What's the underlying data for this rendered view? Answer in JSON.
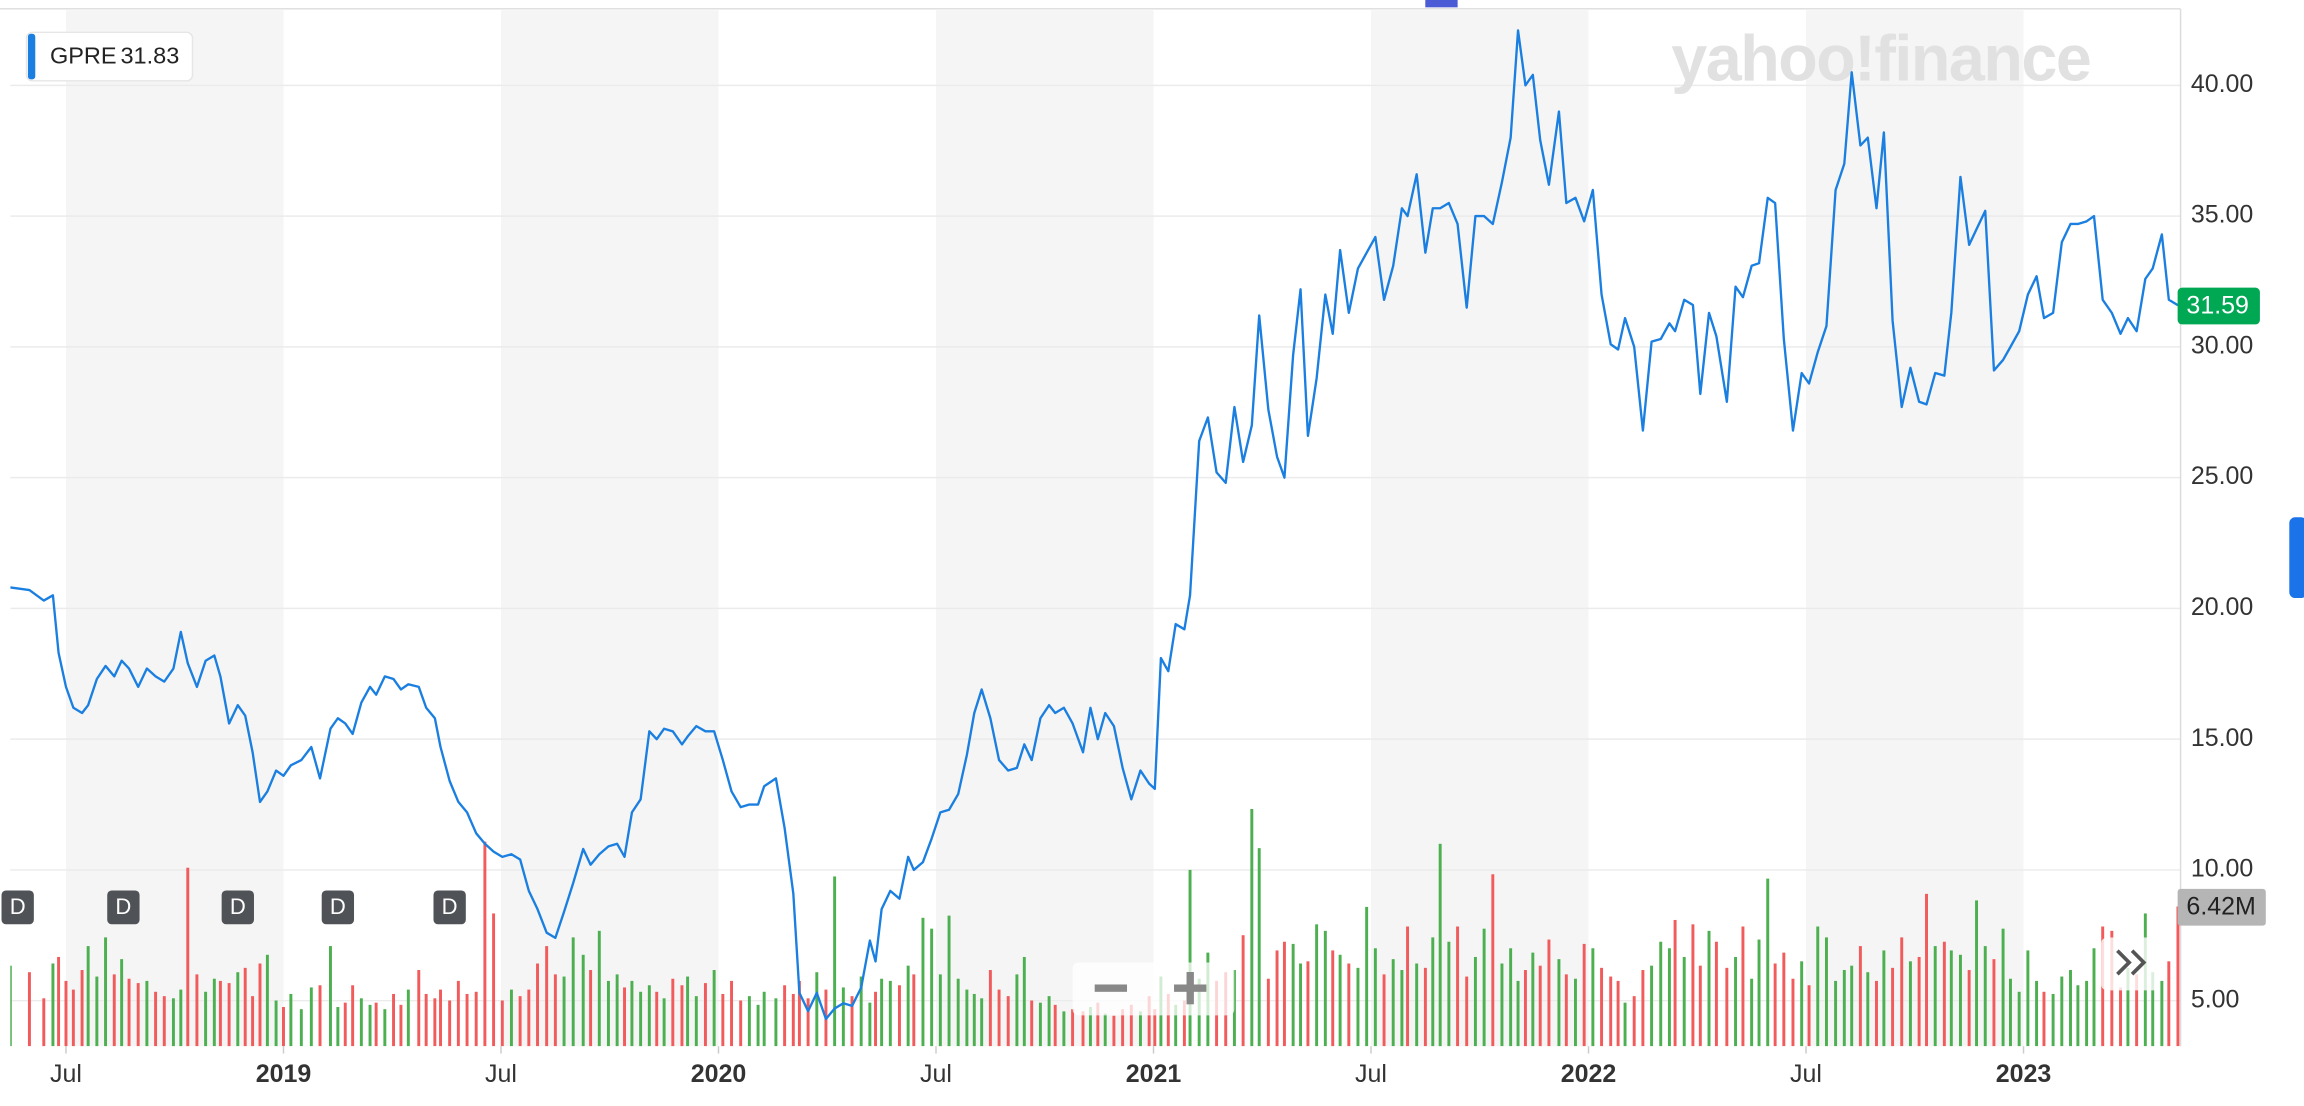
{
  "chart_data": {
    "type": "line",
    "watermark": "yahoo!finance",
    "legend_value": 31.83,
    "last_price": 31.59,
    "last_price_color": "#00a854",
    "xlim": [
      2018.372,
      2023.361
    ],
    "ylim": [
      3.26,
      42.87
    ],
    "xticks": [
      {
        "value": 2018.5,
        "label": "Jul"
      },
      2019,
      {
        "value": 2019.5,
        "label": "Jul"
      },
      2020,
      {
        "value": 2020.5,
        "label": "Jul"
      },
      2021,
      {
        "value": 2021.5,
        "label": "Jul"
      },
      2022,
      {
        "value": 2022.5,
        "label": "Jul"
      },
      2023
    ],
    "yticks": [
      {
        "value": 5,
        "label": "5.00"
      },
      {
        "value": 10,
        "label": "10.00"
      },
      {
        "value": 15,
        "label": "15.00"
      },
      {
        "value": 20,
        "label": "20.00"
      },
      {
        "value": 25,
        "label": "25.00"
      },
      {
        "value": 30,
        "label": "30.00"
      },
      {
        "value": 35,
        "label": "35.00"
      },
      {
        "value": 40,
        "label": "40.00"
      }
    ],
    "grid": true,
    "x": [
      2018.372,
      2018.416,
      2018.449,
      2018.47,
      2018.483,
      2018.5,
      2018.517,
      2018.537,
      2018.551,
      2018.571,
      2018.591,
      2018.611,
      2018.628,
      2018.645,
      2018.666,
      2018.686,
      2018.706,
      2018.726,
      2018.747,
      2018.764,
      2018.78,
      2018.801,
      2018.821,
      2018.841,
      2018.855,
      2018.875,
      2018.895,
      2018.912,
      2018.929,
      2018.946,
      2018.963,
      2018.983,
      2019.0,
      2019.017,
      2019.041,
      2019.064,
      2019.084,
      2019.108,
      2019.125,
      2019.142,
      2019.159,
      2019.179,
      2019.199,
      2019.213,
      2019.233,
      2019.253,
      2019.27,
      2019.287,
      2019.311,
      2019.328,
      2019.348,
      2019.361,
      2019.382,
      2019.402,
      2019.422,
      2019.443,
      2019.463,
      2019.483,
      2019.503,
      2019.524,
      2019.544,
      2019.564,
      2019.584,
      2019.605,
      2019.625,
      2019.645,
      2019.666,
      2019.689,
      2019.706,
      2019.726,
      2019.747,
      2019.767,
      2019.784,
      2019.801,
      2019.821,
      2019.841,
      2019.858,
      2019.875,
      2019.895,
      2019.916,
      2019.929,
      2019.949,
      2019.97,
      2019.99,
      2020.01,
      2020.03,
      2020.051,
      2020.071,
      2020.091,
      2020.105,
      2020.132,
      2020.152,
      2020.172,
      2020.186,
      2020.206,
      2020.226,
      2020.247,
      2020.267,
      2020.287,
      2020.307,
      2020.328,
      2020.348,
      2020.361,
      2020.375,
      2020.395,
      2020.416,
      2020.436,
      2020.449,
      2020.47,
      2020.49,
      2020.51,
      2020.53,
      2020.551,
      2020.571,
      2020.588,
      2020.605,
      2020.625,
      2020.645,
      2020.666,
      2020.686,
      2020.703,
      2020.72,
      2020.74,
      2020.76,
      2020.774,
      2020.794,
      2020.814,
      2020.838,
      2020.855,
      2020.872,
      2020.889,
      2020.909,
      2020.929,
      2020.949,
      2020.97,
      2020.99,
      2021.003,
      2021.017,
      2021.034,
      2021.051,
      2021.071,
      2021.084,
      2021.105,
      2021.125,
      2021.145,
      2021.166,
      2021.186,
      2021.206,
      2021.226,
      2021.243,
      2021.264,
      2021.284,
      2021.301,
      2021.321,
      2021.338,
      2021.355,
      2021.375,
      2021.395,
      2021.412,
      2021.429,
      2021.449,
      2021.47,
      2021.49,
      2021.51,
      2021.53,
      2021.551,
      2021.571,
      2021.584,
      2021.605,
      2021.625,
      2021.642,
      2021.659,
      2021.679,
      2021.699,
      2021.72,
      2021.74,
      2021.76,
      2021.78,
      2021.801,
      2021.821,
      2021.838,
      2021.855,
      2021.872,
      2021.889,
      2021.909,
      2021.932,
      2021.949,
      2021.97,
      2021.99,
      2022.01,
      2022.03,
      2022.051,
      2022.068,
      2022.084,
      2022.105,
      2022.125,
      2022.145,
      2022.166,
      2022.186,
      2022.199,
      2022.22,
      2022.24,
      2022.257,
      2022.277,
      2022.294,
      2022.318,
      2022.338,
      2022.355,
      2022.375,
      2022.392,
      2022.412,
      2022.429,
      2022.449,
      2022.47,
      2022.49,
      2022.507,
      2022.527,
      2022.547,
      2022.568,
      2022.588,
      2022.605,
      2022.625,
      2022.642,
      2022.662,
      2022.679,
      2022.699,
      2022.72,
      2022.74,
      2022.76,
      2022.777,
      2022.797,
      2022.818,
      2022.834,
      2022.855,
      2022.875,
      2022.892,
      2022.912,
      2022.932,
      2022.953,
      2022.97,
      2022.99,
      2023.01,
      2023.03,
      2023.047,
      2023.068,
      2023.088,
      2023.108,
      2023.125,
      2023.145,
      2023.162,
      2023.182,
      2023.203,
      2023.223,
      2023.24,
      2023.26,
      2023.28,
      2023.297,
      2023.318,
      2023.334,
      2023.355
    ],
    "series": [
      {
        "name": "GPRE",
        "color": "#1a7fe0",
        "values": [
          20.8,
          20.7,
          20.3,
          20.5,
          18.3,
          17.0,
          16.2,
          16.0,
          16.3,
          17.3,
          17.8,
          17.4,
          18.0,
          17.7,
          17.0,
          17.7,
          17.4,
          17.2,
          17.7,
          19.1,
          17.9,
          17.0,
          18.0,
          18.2,
          17.4,
          15.6,
          16.3,
          15.9,
          14.5,
          12.6,
          13.0,
          13.8,
          13.6,
          14.0,
          14.2,
          14.7,
          13.5,
          15.4,
          15.8,
          15.6,
          15.2,
          16.4,
          17.0,
          16.7,
          17.4,
          17.3,
          16.9,
          17.1,
          17.0,
          16.2,
          15.8,
          14.7,
          13.4,
          12.6,
          12.2,
          11.4,
          11.0,
          10.7,
          10.5,
          10.6,
          10.4,
          9.2,
          8.5,
          7.6,
          7.4,
          8.4,
          9.5,
          10.8,
          10.2,
          10.6,
          10.9,
          11.0,
          10.5,
          12.2,
          12.7,
          15.3,
          15.0,
          15.4,
          15.3,
          14.8,
          15.1,
          15.5,
          15.3,
          15.3,
          14.2,
          13.0,
          12.4,
          12.5,
          12.5,
          13.2,
          13.5,
          11.6,
          9.1,
          5.3,
          4.6,
          5.3,
          4.3,
          4.7,
          4.9,
          4.8,
          5.5,
          7.3,
          6.5,
          8.5,
          9.2,
          8.9,
          10.5,
          10.0,
          10.3,
          11.2,
          12.2,
          12.3,
          12.9,
          14.4,
          16.0,
          16.9,
          15.8,
          14.2,
          13.8,
          13.9,
          14.8,
          14.2,
          15.8,
          16.3,
          16.0,
          16.2,
          15.6,
          14.5,
          16.2,
          15.0,
          16.0,
          15.5,
          13.9,
          12.7,
          13.8,
          13.3,
          13.1,
          18.1,
          17.6,
          19.4,
          19.2,
          20.5,
          26.4,
          27.3,
          25.2,
          24.8,
          27.7,
          25.6,
          27.0,
          31.2,
          27.6,
          25.8,
          25.0,
          29.7,
          32.2,
          26.6,
          28.8,
          32.0,
          30.5,
          33.7,
          31.3,
          33.0,
          33.6,
          34.2,
          31.8,
          33.1,
          35.3,
          35.0,
          36.6,
          33.6,
          35.3,
          35.3,
          35.5,
          34.7,
          31.5,
          35.0,
          35.0,
          34.7,
          36.3,
          38.0,
          42.1,
          40.0,
          40.4,
          37.9,
          36.2,
          39.0,
          35.5,
          35.7,
          34.8,
          36.0,
          32.0,
          30.1,
          29.9,
          31.1,
          30.0,
          26.8,
          30.2,
          30.3,
          30.9,
          30.6,
          31.8,
          31.6,
          28.2,
          31.3,
          30.4,
          27.9,
          32.3,
          31.9,
          33.1,
          33.2,
          35.7,
          35.5,
          30.3,
          26.8,
          29.0,
          28.6,
          29.8,
          30.8,
          36.0,
          37.0,
          40.5,
          37.7,
          38.0,
          35.3,
          38.2,
          31.0,
          27.7,
          29.2,
          27.9,
          27.8,
          29.0,
          28.9,
          31.3,
          36.5,
          33.9,
          34.5,
          35.2,
          29.1,
          29.5,
          30.0,
          30.6,
          32.0,
          32.7,
          31.1,
          31.3,
          34.0,
          34.7,
          34.7,
          34.8,
          35.0,
          31.8,
          31.3,
          30.5,
          31.1,
          30.6,
          32.6,
          33.0,
          34.3,
          31.8,
          31.59
        ]
      }
    ],
    "volume": {
      "axis": "y2",
      "up_color": "#4caf50",
      "down_color": "#f25b5b",
      "values": [
        3.7,
        3.4,
        2.2,
        3.8,
        4.1,
        3.0,
        2.6,
        3.5,
        4.6,
        3.2,
        5.0,
        3.3,
        4.0,
        3.1,
        2.9,
        3.0,
        2.5,
        2.3,
        2.2,
        2.6,
        8.2,
        3.3,
        2.5,
        3.1,
        3.0,
        2.9,
        3.4,
        3.6,
        2.3,
        3.8,
        4.2,
        2.1,
        1.8,
        2.4,
        1.7,
        2.7,
        2.8,
        4.6,
        1.8,
        2.0,
        2.8,
        2.2,
        1.9,
        2.0,
        1.7,
        2.4,
        1.9,
        2.6,
        3.5,
        2.4,
        2.2,
        2.6,
        2.1,
        3.0,
        2.4,
        2.5,
        9.4,
        6.1,
        2.1,
        2.6,
        2.3,
        2.6,
        3.8,
        4.6,
        3.3,
        3.2,
        5.0,
        4.2,
        3.5,
        5.3,
        3.0,
        3.3,
        2.7,
        3.0,
        2.5,
        2.8,
        2.5,
        2.2,
        3.1,
        2.8,
        3.2,
        2.3,
        2.9,
        3.5,
        2.4,
        3.0,
        2.1,
        2.3,
        1.9,
        2.5,
        2.2,
        2.8,
        2.4,
        3.0,
        2.2,
        3.4,
        2.6,
        7.8,
        2.7,
        2.3,
        3.2,
        2.0,
        2.5,
        3.1,
        3.0,
        2.8,
        3.7,
        3.3,
        5.9,
        5.4,
        3.3,
        6.0,
        3.1,
        2.6,
        2.4,
        2.2,
        3.5,
        2.6,
        2.3,
        3.3,
        4.1,
        2.1,
        2.0,
        2.3,
        1.9,
        1.6,
        1.7,
        1.6,
        1.8,
        2.0,
        1.5,
        1.4,
        1.7,
        1.9,
        1.6,
        2.3,
        1.7,
        3.2,
        2.4,
        1.9,
        2.1,
        8.1,
        3.1,
        4.3,
        3.0,
        3.4,
        3.5,
        5.1,
        10.9,
        9.1,
        3.1,
        4.4,
        4.8,
        4.7,
        3.8,
        3.9,
        5.6,
        5.3,
        4.4,
        4.2,
        3.8,
        3.6,
        6.4,
        4.5,
        3.3,
        4.0,
        3.5,
        5.5,
        3.8,
        3.6,
        5.0,
        9.3,
        4.8,
        5.5,
        3.2,
        4.1,
        5.4,
        7.9,
        3.8,
        4.5,
        3.0,
        3.5,
        4.3,
        3.7,
        4.9,
        4.0,
        3.3,
        3.1,
        4.7,
        4.5,
        3.6,
        3.2,
        3.0,
        2.0,
        2.3,
        3.5,
        3.7,
        4.8,
        4.5,
        5.8,
        4.1,
        5.6,
        3.7,
        5.3,
        4.8,
        3.6,
        4.1,
        5.5,
        3.1,
        4.9,
        7.7,
        3.8,
        4.3,
        3.1,
        3.9,
        2.8,
        5.5,
        5.0,
        3.0,
        3.5,
        3.7,
        4.6,
        3.4,
        3.0,
        4.4,
        3.6,
        5.0,
        3.9,
        4.1,
        7.0,
        4.6,
        4.8,
        4.4,
        4.2,
        3.5,
        6.7,
        4.6,
        4.0,
        5.4,
        3.1,
        2.5,
        4.4,
        3.0,
        2.5,
        2.4,
        3.2,
        3.5,
        2.8,
        3.0,
        4.5,
        5.5,
        5.3,
        2.7,
        3.6,
        3.3,
        6.1,
        3.4,
        3.0,
        3.9,
        6.42
      ]
    },
    "y2lim": [
      0,
      47.6
    ],
    "volume_label": {
      "value": 6.42,
      "label": "6.42M"
    },
    "dividends": [
      {
        "x": 2018.389,
        "label": "D"
      },
      {
        "x": 2018.632,
        "label": "D"
      },
      {
        "x": 2018.895,
        "label": "D"
      },
      {
        "x": 2019.125,
        "label": "D"
      },
      {
        "x": 2019.382,
        "label": "D"
      }
    ]
  }
}
